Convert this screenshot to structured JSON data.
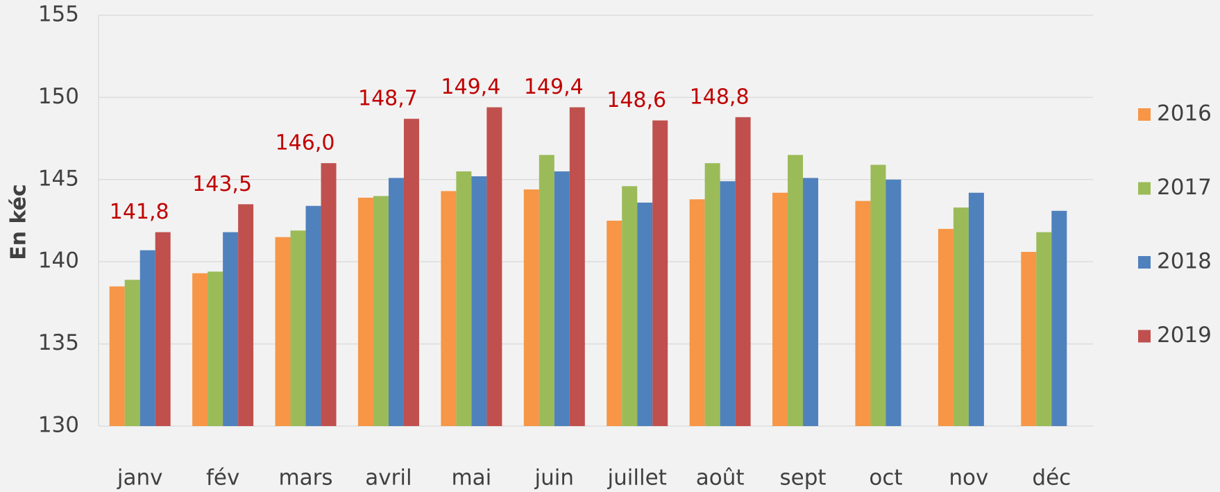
{
  "chart_data": {
    "type": "bar",
    "y_label": "En kéc",
    "categories": [
      "janv",
      "fév",
      "mars",
      "avril",
      "mai",
      "juin",
      "juillet",
      "août",
      "sept",
      "oct",
      "nov",
      "déc"
    ],
    "series": [
      {
        "name": "2016",
        "color": "#f79646",
        "values": [
          138.5,
          139.3,
          141.5,
          143.9,
          144.3,
          144.4,
          142.5,
          143.8,
          144.2,
          143.7,
          142.0,
          140.6
        ]
      },
      {
        "name": "2017",
        "color": "#9bbb59",
        "values": [
          138.9,
          139.4,
          141.9,
          144.0,
          145.5,
          146.5,
          144.6,
          146.0,
          146.5,
          145.9,
          143.3,
          141.8
        ]
      },
      {
        "name": "2018",
        "color": "#4f81bd",
        "values": [
          140.7,
          141.8,
          143.4,
          145.1,
          145.2,
          145.5,
          143.6,
          144.9,
          145.1,
          145.0,
          144.2,
          143.1
        ]
      },
      {
        "name": "2019",
        "color": "#c0504d",
        "values": [
          141.8,
          143.5,
          146.0,
          148.7,
          149.4,
          149.4,
          148.6,
          148.8,
          null,
          null,
          null,
          null
        ],
        "value_labels": [
          "141,8",
          "143,5",
          "146,0",
          "148,7",
          "149,4",
          "149,4",
          "148,6",
          "148,8",
          null,
          null,
          null,
          null
        ]
      }
    ],
    "ylim": [
      130,
      155
    ],
    "yticks": [
      130,
      135,
      140,
      145,
      150,
      155
    ],
    "grid": true,
    "legend": "right"
  }
}
